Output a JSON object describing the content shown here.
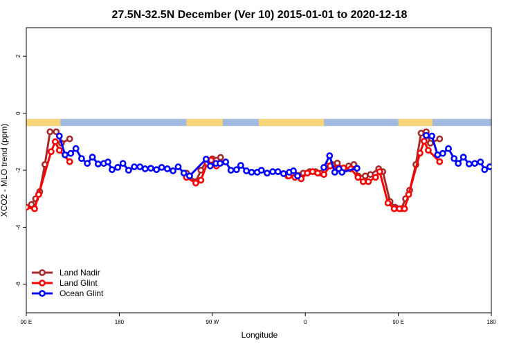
{
  "chart_data": {
    "type": "line",
    "title": "27.5N-32.5N December (Ver 10)   2015-01-01 to 2020-12-18",
    "x_label": "Longitude",
    "y_label": "XCO2 - MLO trend (ppm)",
    "xlim": [
      90,
      540
    ],
    "xticks": [
      {
        "value": 90,
        "label": "90 E"
      },
      {
        "value": 180,
        "label": "180"
      },
      {
        "value": 270,
        "label": "90 W"
      },
      {
        "value": 360,
        "label": "0"
      },
      {
        "value": 450,
        "label": "90 E"
      },
      {
        "value": 540,
        "label": "180"
      }
    ],
    "ylim": [
      -7,
      3
    ],
    "yticks": [
      -6,
      -4,
      -2,
      0,
      2
    ],
    "legend": "bottom-left",
    "surface_strip": {
      "ylim": [
        -0.45,
        -0.2
      ],
      "ocean_color": "#a3bbe0",
      "land_color": "#f7d67a",
      "land": [
        [
          90,
          123
        ],
        [
          245,
          280
        ],
        [
          315,
          378
        ],
        [
          450,
          483
        ]
      ]
    },
    "series": [
      {
        "name": "Land Nadir",
        "color": "#a52a2a",
        "x": [
          95,
          99,
          103,
          108,
          113,
          119,
          124,
          132,
          200,
          245,
          254,
          259,
          265,
          270,
          274,
          278,
          300,
          343,
          348,
          358,
          364,
          370,
          375,
          381,
          386,
          391,
          397,
          402,
          407,
          411,
          418,
          423,
          431,
          435,
          442,
          447,
          453,
          457,
          461,
          467,
          472,
          477,
          481,
          490
        ],
        "values": [
          -3.2,
          -3.0,
          -2.75,
          -1.8,
          -0.65,
          -0.65,
          -1.05,
          -0.9,
          null,
          -2.1,
          -2.4,
          -2.0,
          -1.65,
          -1.6,
          -1.65,
          -1.55,
          null,
          -2.2,
          -2.1,
          -2.1,
          -2.05,
          -2.05,
          -2.1,
          -1.85,
          -1.8,
          -1.75,
          -1.95,
          -1.85,
          -1.8,
          -2.2,
          -2.2,
          -2.15,
          -1.95,
          -2.05,
          -3.1,
          -3.3,
          -3.35,
          -3.0,
          -2.7,
          -1.8,
          -0.7,
          -0.65,
          -1.05,
          -0.9
        ]
      },
      {
        "name": "Land Glint",
        "color": "#ff0000",
        "x": [
          90,
          98,
          102,
          114,
          118,
          122,
          132,
          200,
          245,
          254,
          259,
          265,
          269,
          274,
          278,
          300,
          344,
          350,
          356,
          362,
          367,
          372,
          378,
          384,
          391,
          397,
          404,
          411,
          416,
          421,
          428,
          432,
          440,
          446,
          451,
          456,
          460,
          471,
          475,
          479,
          490
        ],
        "values": [
          -3.3,
          -3.35,
          -2.85,
          -1.35,
          -1.0,
          -1.3,
          -1.7,
          null,
          -2.25,
          -2.45,
          -2.35,
          -1.75,
          -1.65,
          -1.85,
          -1.75,
          null,
          -2.2,
          -2.25,
          -2.3,
          -2.1,
          -2.05,
          -2.1,
          -2.15,
          -1.85,
          -1.92,
          -1.92,
          -1.95,
          -2.25,
          -2.4,
          -2.4,
          -2.25,
          -2.05,
          -3.15,
          -3.35,
          -3.35,
          -3.35,
          -2.85,
          -1.4,
          -0.98,
          -1.3,
          -1.7
        ]
      },
      {
        "name": "Ocean Glint",
        "color": "#0000ff",
        "x": [
          122,
          127.5,
          133,
          138,
          143.5,
          149,
          154,
          159.5,
          165,
          169,
          173,
          178.5,
          183.5,
          189,
          194.5,
          200,
          205,
          210.5,
          216,
          221,
          226.5,
          232,
          237,
          242.5,
          248,
          264,
          268,
          273.5,
          277.5,
          283,
          288,
          293.5,
          297.5,
          303,
          308,
          313.5,
          317.5,
          323,
          328.5,
          333.5,
          339,
          344.5,
          348.5,
          352.5,
          365,
          378,
          383.5,
          388.5,
          392.5,
          395.5,
          410,
          440,
          477,
          482.5,
          488,
          493,
          498.5,
          504,
          508,
          513,
          518.5,
          524,
          529.5,
          533.5,
          538.5
        ],
        "values": [
          -0.8,
          -1.46,
          -1.41,
          -1.24,
          -1.59,
          -1.76,
          -1.54,
          -1.78,
          -1.76,
          -1.71,
          -1.98,
          -1.9,
          -1.76,
          -2.0,
          -1.88,
          -1.88,
          -1.95,
          -1.93,
          -1.98,
          -1.9,
          -1.95,
          -2.02,
          -1.88,
          -2.1,
          -2.2,
          -1.61,
          -1.85,
          -1.76,
          -1.76,
          -1.71,
          -2.0,
          -1.98,
          -1.83,
          -2.02,
          -2.07,
          -2.07,
          -2.0,
          -2.1,
          -2.05,
          -2.05,
          -2.12,
          -2.07,
          -2.02,
          -2.2,
          null,
          -1.9,
          -1.49,
          -2.07,
          -1.95,
          -2.07,
          -1.93,
          null,
          -0.78,
          -0.8,
          -1.46,
          -1.41,
          -1.24,
          -1.59,
          -1.76,
          -1.54,
          -1.78,
          -1.76,
          -1.71,
          -1.98,
          -1.88
        ]
      }
    ]
  }
}
